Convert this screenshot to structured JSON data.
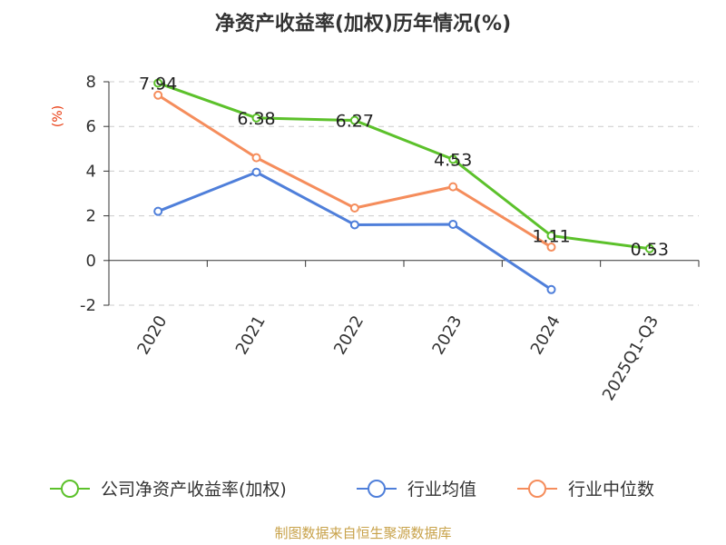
{
  "chart_data": {
    "type": "line",
    "title": "净资产收益率(加权)历年情况(%)",
    "ylabel": "(%)",
    "xlabel": "",
    "categories": [
      "2020",
      "2021",
      "2022",
      "2023",
      "2024",
      "2025Q1-Q3"
    ],
    "ylim": [
      -2,
      8
    ],
    "yticks": [
      -2,
      0,
      2,
      4,
      6,
      8
    ],
    "grid": true,
    "legend_position": "bottom",
    "series": [
      {
        "name": "公司净资产收益率(加权)",
        "color": "#5cc12b",
        "values": [
          7.94,
          6.38,
          6.27,
          4.53,
          1.11,
          0.53
        ],
        "labels": [
          "7.94",
          "6.38",
          "6.27",
          "4.53",
          "1.11",
          "0.53"
        ]
      },
      {
        "name": "行业均值",
        "color": "#4f7fda",
        "values": [
          2.2,
          3.95,
          1.6,
          1.62,
          -1.3,
          null
        ]
      },
      {
        "name": "行业中位数",
        "color": "#f58d5c",
        "values": [
          7.4,
          4.6,
          2.35,
          3.3,
          0.6,
          null
        ]
      }
    ],
    "source": "制图数据来自恒生聚源数据库"
  }
}
